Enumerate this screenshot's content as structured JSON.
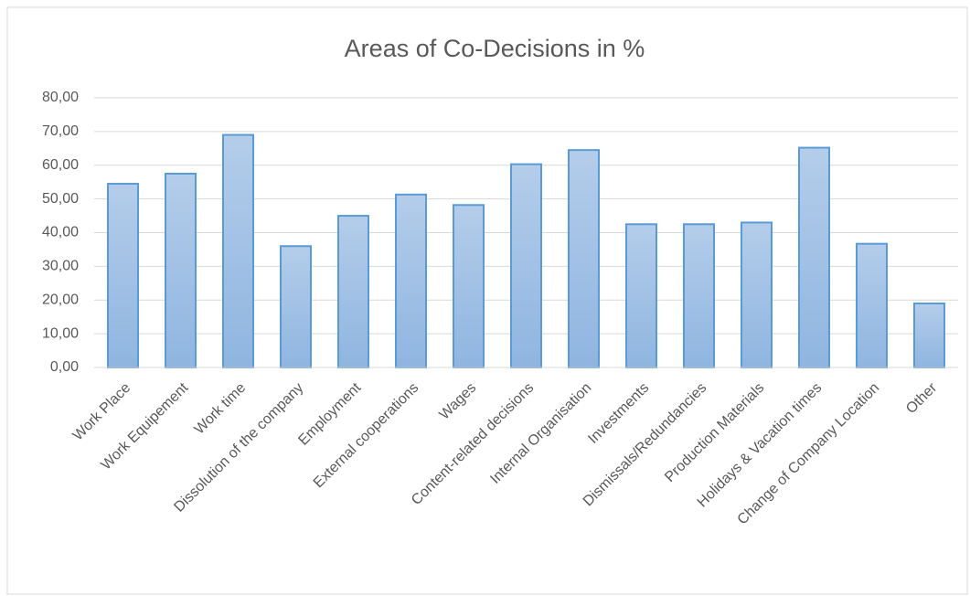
{
  "chart_data": {
    "type": "bar",
    "title": "Areas of Co-Decisions in %",
    "categories": [
      "Work Place",
      "Work Equipement",
      "Work time",
      "Dissolution of the company",
      "Employment",
      "External cooperations",
      "Wages",
      "Content-related decisions",
      "Internal Organisation",
      "Investments",
      "Dismissals/Redundancies",
      "Production Materials",
      "Holidays & Vacation times",
      "Change of Company Location",
      "Other"
    ],
    "values": [
      54.5,
      57.5,
      69,
      36,
      45,
      51.3,
      48.2,
      60.3,
      64.5,
      42.5,
      42.5,
      43,
      65.2,
      36.7,
      19
    ],
    "color": "#5b9bd5",
    "ylim": [
      0,
      80
    ],
    "yticks": [
      {
        "value": 0,
        "label": "0,00"
      },
      {
        "value": 10,
        "label": "10,00"
      },
      {
        "value": 20,
        "label": "20,00"
      },
      {
        "value": 30,
        "label": "30,00"
      },
      {
        "value": 40,
        "label": "40,00"
      },
      {
        "value": 50,
        "label": "50,00"
      },
      {
        "value": 60,
        "label": "60,00"
      },
      {
        "value": 70,
        "label": "70,00"
      },
      {
        "value": 80,
        "label": "80,00"
      }
    ],
    "grid": true
  }
}
